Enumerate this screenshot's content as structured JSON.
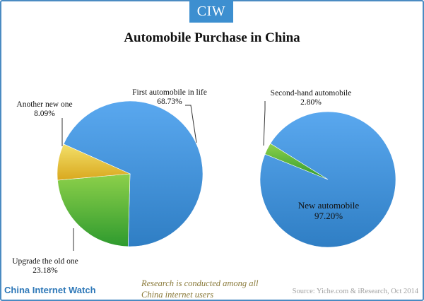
{
  "logo": "CIW",
  "chart_data": [
    {
      "type": "pie",
      "title": "Automobile Purchase in China",
      "slices": [
        {
          "name": "First automobile in life",
          "pct_label": "68.73%",
          "value": 68.73,
          "color_light": "#5aa8ef",
          "color_dark": "#2f7ec4"
        },
        {
          "name": "Upgrade the old one",
          "pct_label": "23.18%",
          "value": 23.18,
          "color_light": "#8dd04a",
          "color_dark": "#2e9a2e"
        },
        {
          "name": "Another new one",
          "pct_label": "8.09%",
          "value": 8.09,
          "color_light": "#f3e06a",
          "color_dark": "#d9a81e"
        }
      ]
    },
    {
      "type": "pie",
      "slices": [
        {
          "name": "New automobile",
          "pct_label": "97.20%",
          "value": 97.2,
          "color_light": "#5aa8ef",
          "color_dark": "#2f7ec4"
        },
        {
          "name": "Second-hand automobile",
          "pct_label": "2.80%",
          "value": 2.8,
          "color_light": "#8dd04a",
          "color_dark": "#2e9a2e"
        }
      ]
    }
  ],
  "footer": {
    "brand": "China Internet Watch",
    "note_line1": "Research is conducted among all",
    "note_line2": "China internet users",
    "source": "Source: Yiche.com & iResearch, Oct 2014"
  }
}
